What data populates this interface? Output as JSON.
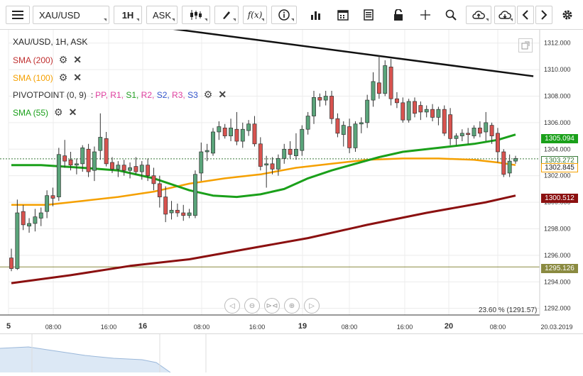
{
  "toolbar": {
    "symbol": "XAU/USD",
    "timeframe": "1H",
    "price_type": "ASK",
    "icons": [
      "menu-icon",
      "candlestick-icon",
      "draw-pen-icon",
      "function-icon",
      "info-icon",
      "bar-chart-icon",
      "calendar-icon",
      "document-icon",
      "lock-icon",
      "crosshair-icon",
      "zoom-icon",
      "upload-cloud-icon",
      "download-cloud-icon",
      "chevron-left-icon",
      "chevron-right-icon",
      "gear-icon"
    ]
  },
  "legend": {
    "title": "XAU/USD, 1H, ASK",
    "sma200": "SMA (200)",
    "sma100": "SMA (100)",
    "pivot_label": "PIVOTPOINT (0, 9)",
    "pivot_sep": ":",
    "pivot_items": [
      {
        "text": "PP",
        "color": "#e040a0"
      },
      {
        "text": "R1",
        "color": "#e040a0"
      },
      {
        "text": "S1",
        "color": "#22a022"
      },
      {
        "text": "R2",
        "color": "#e040a0"
      },
      {
        "text": "S2",
        "color": "#3355cc"
      },
      {
        "text": "R3",
        "color": "#e040a0"
      },
      {
        "text": "S3",
        "color": "#3355cc"
      }
    ],
    "sma55": "SMA (55)"
  },
  "colors": {
    "sma200": "#8b1010",
    "sma100": "#f5a000",
    "sma55": "#1aa01a",
    "trend": "#111111",
    "bull": "#5aa47a",
    "bear": "#d9534f",
    "support": "#8a8a40"
  },
  "price_labels": {
    "sma55": "1305.094",
    "current": "1303.272",
    "sma100": "1302.845",
    "sma200": "1300.512",
    "support": "1295.126"
  },
  "fib_label": "23.60 % (1291.57)",
  "x_axis": {
    "labels": [
      {
        "text": "5",
        "x": 12,
        "major": true
      },
      {
        "text": "08:00",
        "x": 75,
        "major": false
      },
      {
        "text": "16:00",
        "x": 153,
        "major": false
      },
      {
        "text": "16",
        "x": 201,
        "major": true
      },
      {
        "text": "08:00",
        "x": 284,
        "major": false
      },
      {
        "text": "16:00",
        "x": 362,
        "major": false
      },
      {
        "text": "19",
        "x": 426,
        "major": true
      },
      {
        "text": "08:00",
        "x": 492,
        "major": false
      },
      {
        "text": "16:00",
        "x": 570,
        "major": false
      },
      {
        "text": "20",
        "x": 632,
        "major": true
      },
      {
        "text": "08:00",
        "x": 701,
        "major": false
      },
      {
        "text": "20.03.2019",
        "x": 784,
        "major": false
      }
    ]
  },
  "chart_data": {
    "type": "candlestick",
    "symbol": "XAU/USD",
    "timeframe": "1H",
    "ylim": [
      1291.5,
      1313.0
    ],
    "y_ticks": [
      1292.0,
      1294.0,
      1296.0,
      1298.0,
      1300.0,
      1302.0,
      1304.0,
      1306.0,
      1308.0,
      1310.0,
      1312.0
    ],
    "candles": [
      {
        "o": 1295.8,
        "h": 1296.5,
        "l": 1294.8,
        "c": 1295.0
      },
      {
        "o": 1295.0,
        "h": 1300.2,
        "l": 1294.9,
        "c": 1299.2
      },
      {
        "o": 1299.3,
        "h": 1299.8,
        "l": 1297.9,
        "c": 1298.3
      },
      {
        "o": 1298.2,
        "h": 1298.8,
        "l": 1297.7,
        "c": 1298.4
      },
      {
        "o": 1298.4,
        "h": 1299.5,
        "l": 1297.8,
        "c": 1298.9
      },
      {
        "o": 1298.8,
        "h": 1299.6,
        "l": 1298.2,
        "c": 1299.2
      },
      {
        "o": 1299.3,
        "h": 1300.9,
        "l": 1298.8,
        "c": 1300.5
      },
      {
        "o": 1300.5,
        "h": 1301.1,
        "l": 1299.7,
        "c": 1300.3
      },
      {
        "o": 1300.4,
        "h": 1304.1,
        "l": 1300.1,
        "c": 1303.6
      },
      {
        "o": 1303.5,
        "h": 1304.7,
        "l": 1302.6,
        "c": 1303.1
      },
      {
        "o": 1303.2,
        "h": 1303.8,
        "l": 1302.4,
        "c": 1302.8
      },
      {
        "o": 1302.8,
        "h": 1303.3,
        "l": 1302.1,
        "c": 1302.9
      },
      {
        "o": 1302.9,
        "h": 1304.3,
        "l": 1302.3,
        "c": 1304.1
      },
      {
        "o": 1304.0,
        "h": 1304.4,
        "l": 1301.9,
        "c": 1302.3
      },
      {
        "o": 1302.4,
        "h": 1304.2,
        "l": 1301.6,
        "c": 1303.8
      },
      {
        "o": 1303.9,
        "h": 1306.7,
        "l": 1303.2,
        "c": 1304.9
      },
      {
        "o": 1304.8,
        "h": 1305.3,
        "l": 1302.7,
        "c": 1302.9
      },
      {
        "o": 1303.0,
        "h": 1303.4,
        "l": 1302.2,
        "c": 1302.5
      },
      {
        "o": 1302.5,
        "h": 1303.1,
        "l": 1301.9,
        "c": 1302.8
      },
      {
        "o": 1302.8,
        "h": 1303.2,
        "l": 1302.0,
        "c": 1302.4
      },
      {
        "o": 1302.4,
        "h": 1303.0,
        "l": 1301.8,
        "c": 1302.6
      },
      {
        "o": 1302.7,
        "h": 1303.4,
        "l": 1302.1,
        "c": 1302.3
      },
      {
        "o": 1302.3,
        "h": 1303.1,
        "l": 1301.7,
        "c": 1302.8
      },
      {
        "o": 1302.8,
        "h": 1303.3,
        "l": 1301.6,
        "c": 1302.0
      },
      {
        "o": 1302.0,
        "h": 1302.6,
        "l": 1300.9,
        "c": 1301.4
      },
      {
        "o": 1301.4,
        "h": 1302.0,
        "l": 1299.6,
        "c": 1300.4
      },
      {
        "o": 1300.4,
        "h": 1301.2,
        "l": 1298.5,
        "c": 1299.1
      },
      {
        "o": 1299.2,
        "h": 1300.1,
        "l": 1298.7,
        "c": 1299.4
      },
      {
        "o": 1299.4,
        "h": 1299.9,
        "l": 1298.9,
        "c": 1299.2
      },
      {
        "o": 1299.2,
        "h": 1299.8,
        "l": 1298.6,
        "c": 1299.0
      },
      {
        "o": 1299.0,
        "h": 1299.5,
        "l": 1298.8,
        "c": 1299.2
      },
      {
        "o": 1299.0,
        "h": 1302.4,
        "l": 1298.8,
        "c": 1302.1
      },
      {
        "o": 1302.2,
        "h": 1304.5,
        "l": 1301.6,
        "c": 1303.8
      },
      {
        "o": 1303.8,
        "h": 1304.4,
        "l": 1303.1,
        "c": 1303.9
      },
      {
        "o": 1303.7,
        "h": 1305.6,
        "l": 1303.5,
        "c": 1305.3
      },
      {
        "o": 1305.3,
        "h": 1306.1,
        "l": 1304.7,
        "c": 1305.7
      },
      {
        "o": 1305.6,
        "h": 1305.9,
        "l": 1304.8,
        "c": 1305.0
      },
      {
        "o": 1305.0,
        "h": 1306.3,
        "l": 1304.6,
        "c": 1305.6
      },
      {
        "o": 1305.5,
        "h": 1306.8,
        "l": 1304.3,
        "c": 1304.6
      },
      {
        "o": 1304.6,
        "h": 1306.0,
        "l": 1304.1,
        "c": 1305.5
      },
      {
        "o": 1305.4,
        "h": 1306.2,
        "l": 1305.0,
        "c": 1305.9
      },
      {
        "o": 1305.9,
        "h": 1306.5,
        "l": 1304.2,
        "c": 1304.4
      },
      {
        "o": 1304.4,
        "h": 1304.9,
        "l": 1302.4,
        "c": 1302.7
      },
      {
        "o": 1302.8,
        "h": 1303.5,
        "l": 1301.1,
        "c": 1302.9
      },
      {
        "o": 1302.9,
        "h": 1303.4,
        "l": 1302.1,
        "c": 1302.5
      },
      {
        "o": 1302.5,
        "h": 1303.6,
        "l": 1302.0,
        "c": 1303.3
      },
      {
        "o": 1303.3,
        "h": 1304.4,
        "l": 1302.9,
        "c": 1304.0
      },
      {
        "o": 1304.0,
        "h": 1304.6,
        "l": 1303.3,
        "c": 1303.6
      },
      {
        "o": 1303.5,
        "h": 1305.2,
        "l": 1303.2,
        "c": 1304.0
      },
      {
        "o": 1303.9,
        "h": 1305.8,
        "l": 1303.5,
        "c": 1305.5
      },
      {
        "o": 1305.5,
        "h": 1306.8,
        "l": 1305.1,
        "c": 1306.5
      },
      {
        "o": 1306.5,
        "h": 1308.4,
        "l": 1305.9,
        "c": 1307.9
      },
      {
        "o": 1307.9,
        "h": 1308.2,
        "l": 1307.2,
        "c": 1307.7
      },
      {
        "o": 1307.7,
        "h": 1308.4,
        "l": 1307.3,
        "c": 1308.0
      },
      {
        "o": 1308.0,
        "h": 1308.4,
        "l": 1305.9,
        "c": 1306.3
      },
      {
        "o": 1306.3,
        "h": 1306.7,
        "l": 1304.9,
        "c": 1305.2
      },
      {
        "o": 1305.1,
        "h": 1306.1,
        "l": 1304.2,
        "c": 1305.8
      },
      {
        "o": 1305.7,
        "h": 1306.3,
        "l": 1303.7,
        "c": 1304.1
      },
      {
        "o": 1304.1,
        "h": 1306.1,
        "l": 1303.8,
        "c": 1305.9
      },
      {
        "o": 1305.9,
        "h": 1306.4,
        "l": 1305.2,
        "c": 1306.0
      },
      {
        "o": 1306.0,
        "h": 1308.1,
        "l": 1305.6,
        "c": 1307.7
      },
      {
        "o": 1307.7,
        "h": 1309.8,
        "l": 1307.2,
        "c": 1309.1
      },
      {
        "o": 1309.0,
        "h": 1311.1,
        "l": 1307.8,
        "c": 1308.2
      },
      {
        "o": 1308.2,
        "h": 1310.7,
        "l": 1308.0,
        "c": 1310.3
      },
      {
        "o": 1310.2,
        "h": 1310.8,
        "l": 1307.3,
        "c": 1307.8
      },
      {
        "o": 1307.8,
        "h": 1308.3,
        "l": 1307.1,
        "c": 1307.5
      },
      {
        "o": 1307.5,
        "h": 1307.9,
        "l": 1306.0,
        "c": 1306.2
      },
      {
        "o": 1306.2,
        "h": 1307.8,
        "l": 1306.0,
        "c": 1307.6
      },
      {
        "o": 1307.6,
        "h": 1307.9,
        "l": 1306.4,
        "c": 1306.7
      },
      {
        "o": 1307.3,
        "h": 1307.6,
        "l": 1306.2,
        "c": 1306.8
      },
      {
        "o": 1306.8,
        "h": 1307.3,
        "l": 1306.4,
        "c": 1307.0
      },
      {
        "o": 1307.0,
        "h": 1307.4,
        "l": 1306.1,
        "c": 1306.4
      },
      {
        "o": 1306.4,
        "h": 1307.2,
        "l": 1305.8,
        "c": 1307.0
      },
      {
        "o": 1307.0,
        "h": 1307.3,
        "l": 1305.0,
        "c": 1305.2
      },
      {
        "o": 1306.6,
        "h": 1307.1,
        "l": 1304.3,
        "c": 1304.8
      },
      {
        "o": 1304.8,
        "h": 1305.2,
        "l": 1304.3,
        "c": 1305.0
      },
      {
        "o": 1305.0,
        "h": 1305.5,
        "l": 1304.6,
        "c": 1305.2
      },
      {
        "o": 1305.2,
        "h": 1305.6,
        "l": 1304.4,
        "c": 1305.1
      },
      {
        "o": 1305.0,
        "h": 1305.8,
        "l": 1304.8,
        "c": 1305.6
      },
      {
        "o": 1305.6,
        "h": 1306.1,
        "l": 1304.9,
        "c": 1305.2
      },
      {
        "o": 1305.3,
        "h": 1306.8,
        "l": 1304.6,
        "c": 1306.0
      },
      {
        "o": 1305.8,
        "h": 1306.0,
        "l": 1304.4,
        "c": 1305.0
      },
      {
        "o": 1305.2,
        "h": 1305.6,
        "l": 1303.0,
        "c": 1303.8
      },
      {
        "o": 1303.8,
        "h": 1304.0,
        "l": 1301.9,
        "c": 1302.1
      },
      {
        "o": 1302.2,
        "h": 1303.6,
        "l": 1301.9,
        "c": 1303.1
      },
      {
        "o": 1303.1,
        "h": 1303.5,
        "l": 1302.9,
        "c": 1303.3
      }
    ],
    "sma55": [
      [
        0,
        1302.8
      ],
      [
        5,
        1302.8
      ],
      [
        12,
        1302.6
      ],
      [
        18,
        1302.4
      ],
      [
        24,
        1301.8
      ],
      [
        30,
        1300.9
      ],
      [
        34,
        1300.5
      ],
      [
        38,
        1300.4
      ],
      [
        42,
        1300.6
      ],
      [
        46,
        1301.0
      ],
      [
        50,
        1301.8
      ],
      [
        54,
        1302.4
      ],
      [
        58,
        1302.9
      ],
      [
        62,
        1303.4
      ],
      [
        66,
        1303.8
      ],
      [
        70,
        1304.0
      ],
      [
        74,
        1304.2
      ],
      [
        78,
        1304.4
      ],
      [
        82,
        1304.7
      ],
      [
        85,
        1305.1
      ]
    ],
    "sma100": [
      [
        0,
        1299.8
      ],
      [
        6,
        1299.8
      ],
      [
        12,
        1300.1
      ],
      [
        18,
        1300.4
      ],
      [
        24,
        1300.8
      ],
      [
        30,
        1301.4
      ],
      [
        36,
        1301.8
      ],
      [
        42,
        1302.1
      ],
      [
        48,
        1302.6
      ],
      [
        54,
        1302.9
      ],
      [
        60,
        1303.2
      ],
      [
        66,
        1303.3
      ],
      [
        72,
        1303.3
      ],
      [
        78,
        1303.2
      ],
      [
        82,
        1303.0
      ],
      [
        85,
        1302.8
      ]
    ],
    "sma200": [
      [
        0,
        1293.9
      ],
      [
        10,
        1294.5
      ],
      [
        20,
        1295.2
      ],
      [
        30,
        1295.7
      ],
      [
        40,
        1296.5
      ],
      [
        50,
        1297.3
      ],
      [
        60,
        1298.3
      ],
      [
        70,
        1299.2
      ],
      [
        80,
        1300.0
      ],
      [
        85,
        1300.5
      ]
    ],
    "trendline": [
      [
        25,
        1313.2
      ],
      [
        88,
        1309.5
      ]
    ],
    "support_level": 1295.126,
    "current_price": 1303.272
  }
}
